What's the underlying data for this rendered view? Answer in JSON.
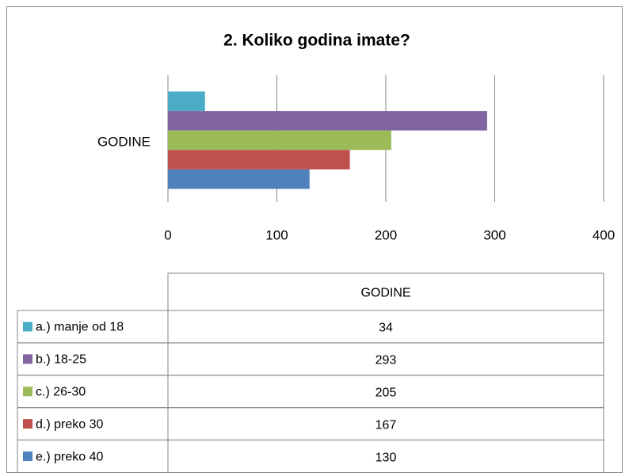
{
  "chart_data": {
    "type": "bar",
    "orientation": "horizontal",
    "title": "2. Koliko godina imate?",
    "categories": [
      "GODINE"
    ],
    "series": [
      {
        "name": "a.) manje od 18",
        "color": "#4bacc6",
        "values": [
          34
        ]
      },
      {
        "name": "b.) 18-25",
        "color": "#8064a2",
        "values": [
          293
        ]
      },
      {
        "name": "c.) 26-30",
        "color": "#9bbb59",
        "values": [
          205
        ]
      },
      {
        "name": "d.) preko 30",
        "color": "#c0504d",
        "values": [
          167
        ]
      },
      {
        "name": "e.) preko 40",
        "color": "#4f81bd",
        "values": [
          130
        ]
      }
    ],
    "xlim": [
      0,
      400
    ],
    "xticks": [
      0,
      100,
      200,
      300,
      400
    ],
    "grid": true,
    "data_table": true
  }
}
